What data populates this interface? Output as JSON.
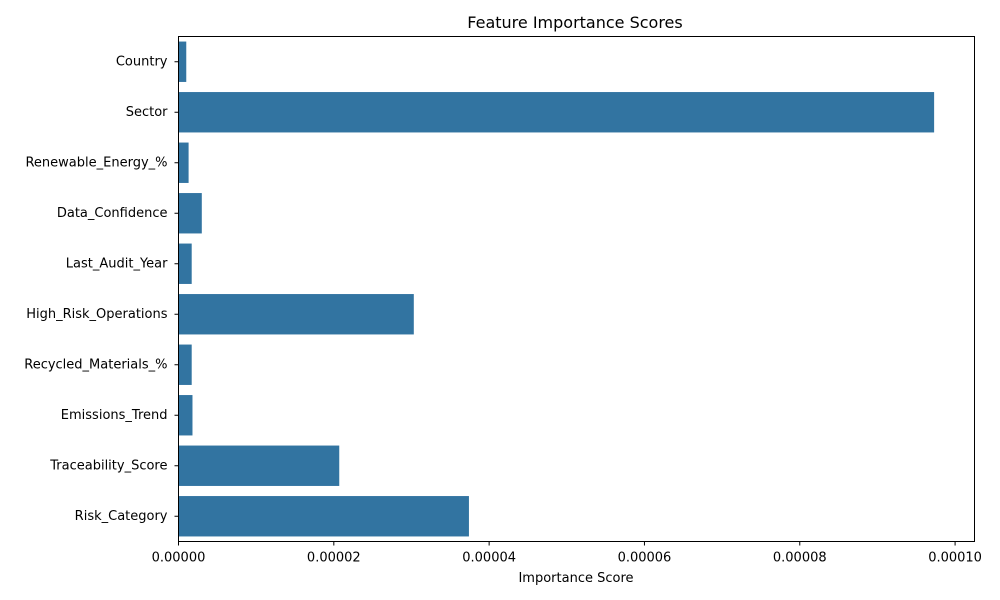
{
  "chart_data": {
    "type": "bar",
    "orientation": "horizontal",
    "title": "Feature Importance Scores",
    "xlabel": "Importance Score",
    "ylabel": "",
    "categories": [
      "Country",
      "Sector",
      "Renewable_Energy_%",
      "Data_Confidence",
      "Last_Audit_Year",
      "High_Risk_Operations",
      "Recycled_Materials_%",
      "Emissions_Trend",
      "Traceability_Score",
      "Risk_Category"
    ],
    "values": [
      1e-06,
      9.73e-05,
      1.3e-06,
      3e-06,
      1.7e-06,
      3.03e-05,
      1.7e-06,
      1.8e-06,
      2.07e-05,
      3.74e-05
    ],
    "xlim": [
      0,
      0.0001025
    ],
    "xticks": [
      0,
      2e-05,
      4e-05,
      6e-05,
      8e-05,
      0.0001
    ],
    "xtick_labels": [
      "0.00000",
      "0.00002",
      "0.00004",
      "0.00006",
      "0.00008",
      "0.00010"
    ],
    "bar_color": "#3274a1",
    "grid": false,
    "legend": "none"
  }
}
